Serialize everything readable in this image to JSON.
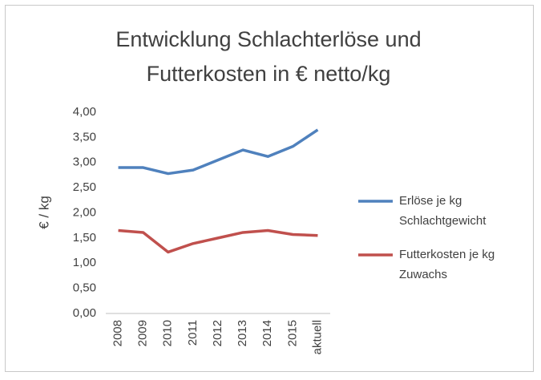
{
  "chart_data": {
    "type": "line",
    "title": "Entwicklung Schlachterlöse und Futterkosten in € netto/kg",
    "y_label": "€ / kg",
    "categories": [
      "2008",
      "2009",
      "2010",
      "2011",
      "2012",
      "2013",
      "2014",
      "2015",
      "aktuell"
    ],
    "series": [
      {
        "name": "Erlöse je kg Schlachtgewicht",
        "color": "#4f81bd",
        "values": [
          2.9,
          2.9,
          2.78,
          2.85,
          3.05,
          3.25,
          3.12,
          3.32,
          3.65
        ]
      },
      {
        "name": "Futterkosten je kg Zuwachs",
        "color": "#c0504d",
        "values": [
          1.65,
          1.61,
          1.22,
          1.39,
          1.5,
          1.61,
          1.65,
          1.57,
          1.55
        ]
      }
    ],
    "ylim": [
      0,
      4
    ],
    "yticks": [
      {
        "value": 0,
        "label": "0,00"
      },
      {
        "value": 0.5,
        "label": "0,50"
      },
      {
        "value": 1,
        "label": "1,00"
      },
      {
        "value": 1.5,
        "label": "1,50"
      },
      {
        "value": 2,
        "label": "2,00"
      },
      {
        "value": 2.5,
        "label": "2,50"
      },
      {
        "value": 3,
        "label": "3,00"
      },
      {
        "value": 3.5,
        "label": "3,50"
      },
      {
        "value": 4,
        "label": "4,00"
      }
    ],
    "legend": "right"
  }
}
